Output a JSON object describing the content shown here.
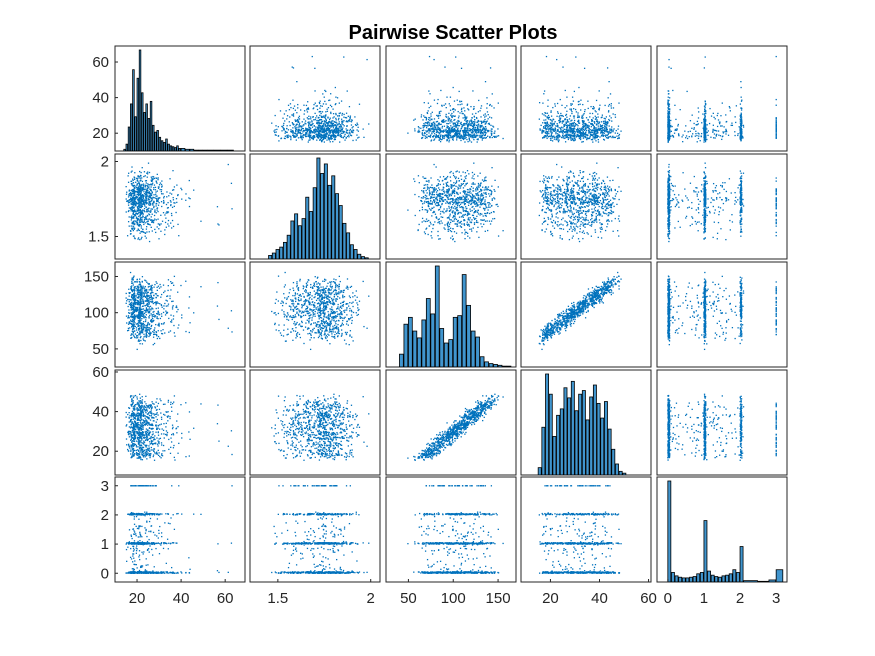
{
  "chart_data": {
    "type": "scatter_matrix",
    "title": "Pairwise Scatter Plots",
    "n_vars": 5,
    "variables": [
      {
        "range": [
          10,
          69
        ],
        "ticks": [
          20,
          40,
          60
        ],
        "tick_labels": [
          "20",
          "40",
          "60"
        ]
      },
      {
        "range": [
          1.35,
          2.05
        ],
        "ticks": [
          1.5,
          2
        ],
        "tick_labels": [
          "1.5",
          "2"
        ]
      },
      {
        "range": [
          25,
          170
        ],
        "ticks": [
          50,
          100,
          150
        ],
        "tick_labels": [
          "50",
          "100",
          "150"
        ]
      },
      {
        "range": [
          8,
          61
        ],
        "ticks": [
          20,
          40,
          60
        ],
        "tick_labels": [
          "20",
          "40",
          "60"
        ]
      },
      {
        "range": [
          -0.3,
          3.3
        ],
        "ticks": [
          0,
          1,
          2,
          3
        ],
        "tick_labels": [
          "0",
          "1",
          "2",
          "3"
        ]
      }
    ],
    "histograms": [
      {
        "bins": [
          14,
          15,
          16,
          17,
          18,
          19,
          20,
          21,
          22,
          23,
          24,
          25,
          26,
          27,
          28,
          29,
          30,
          31,
          32,
          33,
          34,
          35,
          36,
          37,
          38,
          39,
          40,
          42,
          44,
          46,
          48,
          50,
          52,
          55,
          58,
          61
        ],
        "counts": [
          2,
          8,
          28,
          55,
          95,
          40,
          85,
          118,
          68,
          45,
          55,
          38,
          58,
          30,
          22,
          24,
          16,
          12,
          10,
          14,
          8,
          6,
          5,
          4,
          6,
          3,
          3,
          2,
          2,
          1,
          1,
          1,
          1,
          1,
          1,
          1
        ]
      },
      {
        "bins": [
          1.45,
          1.47,
          1.49,
          1.51,
          1.53,
          1.55,
          1.57,
          1.59,
          1.61,
          1.63,
          1.65,
          1.67,
          1.69,
          1.71,
          1.73,
          1.75,
          1.77,
          1.79,
          1.81,
          1.83,
          1.85,
          1.87,
          1.89,
          1.91,
          1.93,
          1.95,
          1.97
        ],
        "counts": [
          3,
          5,
          8,
          10,
          14,
          20,
          32,
          38,
          28,
          34,
          52,
          40,
          60,
          85,
          72,
          80,
          62,
          70,
          55,
          45,
          30,
          22,
          12,
          8,
          4,
          2,
          1
        ]
      },
      {
        "bins": [
          40,
          45,
          50,
          55,
          60,
          65,
          70,
          75,
          80,
          85,
          90,
          95,
          100,
          105,
          110,
          115,
          120,
          125,
          130,
          135,
          140,
          145,
          150,
          155,
          160
        ],
        "counts": [
          15,
          50,
          58,
          42,
          34,
          55,
          80,
          62,
          118,
          45,
          28,
          32,
          58,
          60,
          108,
          72,
          42,
          35,
          12,
          6,
          4,
          3,
          2,
          1,
          1
        ]
      },
      {
        "bins": [
          15,
          16.5,
          18,
          19.5,
          21,
          22.5,
          24,
          25.5,
          27,
          28.5,
          30,
          31.5,
          33,
          34.5,
          36,
          37.5,
          39,
          40.5,
          42,
          43.5,
          45,
          46.5,
          48,
          49.5
        ],
        "counts": [
          8,
          52,
          110,
          88,
          42,
          65,
          72,
          95,
          84,
          102,
          70,
          88,
          92,
          60,
          85,
          98,
          78,
          62,
          80,
          50,
          28,
          12,
          4,
          2
        ]
      },
      {
        "bins": [
          0,
          0.1,
          0.2,
          0.3,
          0.4,
          0.5,
          0.6,
          0.7,
          0.8,
          0.9,
          1.0,
          1.1,
          1.2,
          1.3,
          1.4,
          1.5,
          1.6,
          1.7,
          1.8,
          1.9,
          2.0,
          2.1,
          2.5,
          2.8,
          3.0
        ],
        "counts": [
          148,
          14,
          9,
          7,
          6,
          6,
          7,
          8,
          12,
          14,
          90,
          16,
          10,
          8,
          7,
          9,
          10,
          12,
          18,
          14,
          52,
          2,
          1,
          3,
          18
        ]
      }
    ],
    "relationships": {
      "0_1": {
        "corr": 0.05
      },
      "0_2": {
        "corr": 0.15
      },
      "0_3": {
        "corr": 0.1
      },
      "0_4": {
        "corr": 0.0
      },
      "1_2": {
        "corr": 0.45
      },
      "1_3": {
        "corr": -0.4
      },
      "1_4": {
        "corr": 0.0
      },
      "2_3": {
        "corr": 0.95
      },
      "2_4": {
        "corr": 0.0
      },
      "3_4": {
        "corr": 0.0
      }
    },
    "point_color": "#0072BD",
    "bar_color": "#0072BD",
    "bar_edge_color": "#000000",
    "grid": false
  }
}
